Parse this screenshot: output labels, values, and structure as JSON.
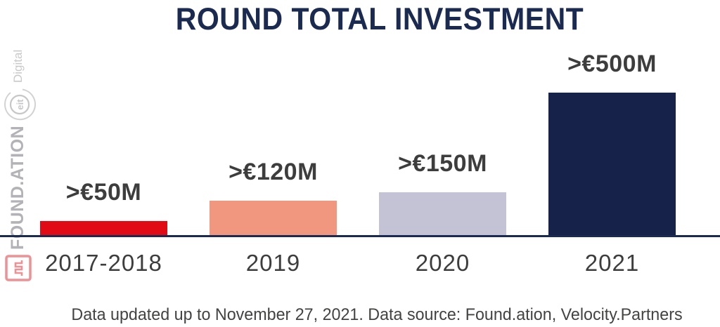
{
  "title": "ROUND TOTAL INVESTMENT",
  "footer": "Data updated up to November 27, 2021. Data source: Found.ation, Velocity.Partners",
  "branding": {
    "foundation_label": "FOUND.ATION",
    "eit_label": "eit",
    "digital_label": "Digital",
    "logo_icon": "square-wave-logo-icon"
  },
  "colors": {
    "title_navy": "#1b2a50",
    "axis_navy": "#1b2a50",
    "label_gray": "#3d3d3d",
    "watermark_gray": "#b2b2b7",
    "watermark_light_gray": "#c9c9cc",
    "logo_red": "#ef9094"
  },
  "chart_data": {
    "type": "bar",
    "title": "ROUND TOTAL INVESTMENT",
    "categories": [
      "2017-2018",
      "2019",
      "2020",
      "2021"
    ],
    "values": [
      50,
      120,
      150,
      500
    ],
    "value_labels": [
      ">€50M",
      ">€120M",
      ">€150M",
      ">€500M"
    ],
    "bar_colors": [
      "#e10b15",
      "#f19780",
      "#c3c3d5",
      "#16224a"
    ],
    "xlabel": "",
    "ylabel": "",
    "ylim": [
      0,
      520
    ],
    "grid": false,
    "legend": false,
    "annotation": "Data updated up to November 27, 2021. Data source: Found.ation, Velocity.Partners"
  }
}
